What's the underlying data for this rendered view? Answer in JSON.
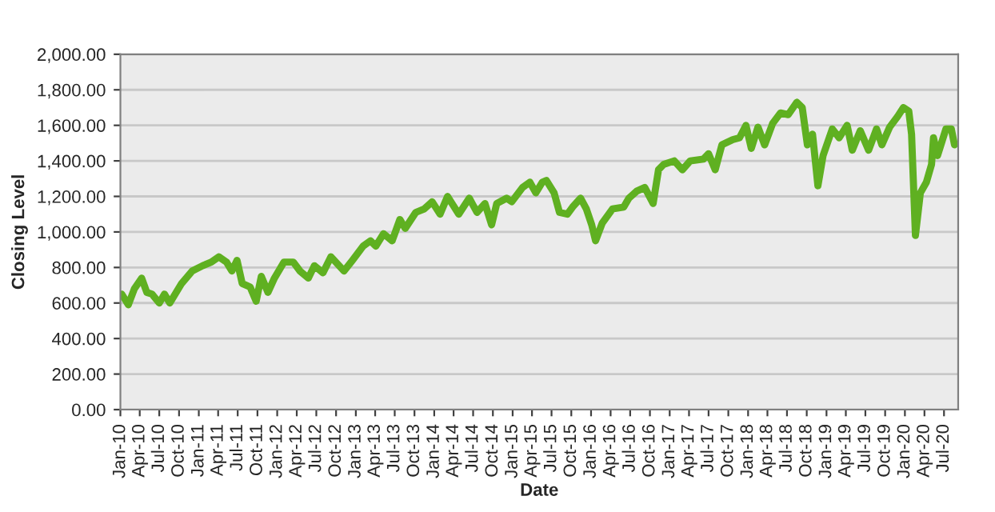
{
  "chart_data": {
    "type": "line",
    "xlabel": "Date",
    "ylabel": "Closing Level",
    "x": [
      "2010-01-07",
      "2010-02-07",
      "2010-03-07",
      "2010-04-10",
      "2010-05-04",
      "2010-05-28",
      "2010-07-01",
      "2010-07-25",
      "2010-08-19",
      "2010-10-13",
      "2010-12-01",
      "2011-01-19",
      "2011-02-28",
      "2011-04-04",
      "2011-05-10",
      "2011-06-04",
      "2011-06-28",
      "2011-07-22",
      "2011-08-28",
      "2011-09-25",
      "2011-10-19",
      "2011-11-19",
      "2011-12-19",
      "2012-02-01",
      "2012-03-16",
      "2012-04-16",
      "2012-05-25",
      "2012-06-22",
      "2012-08-01",
      "2012-09-07",
      "2012-11-07",
      "2012-12-16",
      "2013-02-04",
      "2013-03-10",
      "2013-04-04",
      "2013-05-10",
      "2013-06-19",
      "2013-07-25",
      "2013-08-19",
      "2013-10-07",
      "2013-11-16",
      "2013-12-22",
      "2014-01-28",
      "2014-03-04",
      "2014-04-25",
      "2014-06-13",
      "2014-07-19",
      "2014-08-25",
      "2014-09-25",
      "2014-10-19",
      "2014-12-04",
      "2014-12-28",
      "2015-02-16",
      "2015-03-22",
      "2015-04-19",
      "2015-05-19",
      "2015-06-07",
      "2015-07-13",
      "2015-08-07",
      "2015-09-13",
      "2015-10-07",
      "2015-11-13",
      "2015-12-10",
      "2016-01-04",
      "2016-01-22",
      "2016-02-22",
      "2016-04-10",
      "2016-06-01",
      "2016-06-25",
      "2016-08-01",
      "2016-09-07",
      "2016-10-16",
      "2016-11-10",
      "2016-12-04",
      "2017-01-22",
      "2017-03-01",
      "2017-04-07",
      "2017-06-07",
      "2017-07-01",
      "2017-08-01",
      "2017-09-01",
      "2017-10-22",
      "2017-11-22",
      "2017-12-22",
      "2018-01-16",
      "2018-02-16",
      "2018-03-19",
      "2018-04-25",
      "2018-06-01",
      "2018-07-07",
      "2018-08-16",
      "2018-09-10",
      "2018-10-04",
      "2018-10-28",
      "2018-11-22",
      "2018-12-16",
      "2019-01-28",
      "2019-03-01",
      "2019-04-07",
      "2019-05-01",
      "2019-06-07",
      "2019-07-16",
      "2019-08-22",
      "2019-09-16",
      "2019-10-22",
      "2019-11-28",
      "2019-12-25",
      "2020-01-19",
      "2020-02-01",
      "2020-02-19",
      "2020-03-13",
      "2020-04-10",
      "2020-05-04",
      "2020-05-13",
      "2020-06-01",
      "2020-07-10",
      "2020-08-04",
      "2020-08-19"
    ],
    "series": [
      {
        "color": "#5fb021",
        "values": [
          650,
          590,
          680,
          740,
          660,
          650,
          600,
          650,
          600,
          710,
          780,
          810,
          830,
          860,
          830,
          780,
          840,
          710,
          690,
          610,
          750,
          660,
          740,
          830,
          830,
          780,
          740,
          810,
          770,
          860,
          780,
          840,
          920,
          950,
          920,
          990,
          950,
          1070,
          1020,
          1110,
          1130,
          1170,
          1100,
          1200,
          1100,
          1190,
          1110,
          1160,
          1040,
          1160,
          1190,
          1170,
          1250,
          1280,
          1220,
          1280,
          1290,
          1220,
          1110,
          1100,
          1140,
          1190,
          1130,
          1040,
          950,
          1050,
          1130,
          1140,
          1190,
          1230,
          1250,
          1160,
          1350,
          1380,
          1400,
          1350,
          1400,
          1410,
          1440,
          1350,
          1490,
          1520,
          1530,
          1600,
          1470,
          1590,
          1490,
          1610,
          1670,
          1660,
          1730,
          1700,
          1490,
          1550,
          1260,
          1430,
          1580,
          1530,
          1600,
          1460,
          1570,
          1460,
          1580,
          1490,
          1590,
          1650,
          1700,
          1680,
          1550,
          980,
          1220,
          1280,
          1380,
          1530,
          1430,
          1580,
          1580,
          1490
        ]
      }
    ],
    "xlim": [
      "2010-01-01",
      "2020-09-05"
    ],
    "xticks": [
      {
        "value": "2010-01-01",
        "label": "Jan-10"
      },
      {
        "value": "2010-04-01",
        "label": "Apr-10"
      },
      {
        "value": "2010-07-01",
        "label": "Jul-10"
      },
      {
        "value": "2010-10-01",
        "label": "Oct-10"
      },
      {
        "value": "2011-01-01",
        "label": "Jan-11"
      },
      {
        "value": "2011-04-01",
        "label": "Apr-11"
      },
      {
        "value": "2011-07-01",
        "label": "Jul-11"
      },
      {
        "value": "2011-10-01",
        "label": "Oct-11"
      },
      {
        "value": "2012-01-01",
        "label": "Jan-12"
      },
      {
        "value": "2012-04-01",
        "label": "Apr-12"
      },
      {
        "value": "2012-07-01",
        "label": "Jul-12"
      },
      {
        "value": "2012-10-01",
        "label": "Oct-12"
      },
      {
        "value": "2013-01-01",
        "label": "Jan-13"
      },
      {
        "value": "2013-04-01",
        "label": "Apr-13"
      },
      {
        "value": "2013-07-01",
        "label": "Jul-13"
      },
      {
        "value": "2013-10-01",
        "label": "Oct-13"
      },
      {
        "value": "2014-01-01",
        "label": "Jan-14"
      },
      {
        "value": "2014-04-01",
        "label": "Apr-14"
      },
      {
        "value": "2014-07-01",
        "label": "Jul-14"
      },
      {
        "value": "2014-10-01",
        "label": "Oct-14"
      },
      {
        "value": "2015-01-01",
        "label": "Jan-15"
      },
      {
        "value": "2015-04-01",
        "label": "Apr-15"
      },
      {
        "value": "2015-07-01",
        "label": "Jul-15"
      },
      {
        "value": "2015-10-01",
        "label": "Oct-15"
      },
      {
        "value": "2016-01-01",
        "label": "Jan-16"
      },
      {
        "value": "2016-04-01",
        "label": "Apr-16"
      },
      {
        "value": "2016-07-01",
        "label": "Jul-16"
      },
      {
        "value": "2016-10-01",
        "label": "Oct-16"
      },
      {
        "value": "2017-01-01",
        "label": "Jan-17"
      },
      {
        "value": "2017-04-01",
        "label": "Apr-17"
      },
      {
        "value": "2017-07-01",
        "label": "Jul-17"
      },
      {
        "value": "2017-10-01",
        "label": "Oct-17"
      },
      {
        "value": "2018-01-01",
        "label": "Jan-18"
      },
      {
        "value": "2018-04-01",
        "label": "Apr-18"
      },
      {
        "value": "2018-07-01",
        "label": "Jul-18"
      },
      {
        "value": "2018-10-01",
        "label": "Oct-18"
      },
      {
        "value": "2019-01-01",
        "label": "Jan-19"
      },
      {
        "value": "2019-04-01",
        "label": "Apr-19"
      },
      {
        "value": "2019-07-01",
        "label": "Jul-19"
      },
      {
        "value": "2019-10-01",
        "label": "Oct-19"
      },
      {
        "value": "2020-01-01",
        "label": "Jan-20"
      },
      {
        "value": "2020-04-01",
        "label": "Apr-20"
      },
      {
        "value": "2020-07-01",
        "label": "Jul-20"
      }
    ],
    "ylim": [
      0,
      2000
    ],
    "yticks": [
      {
        "value": 0,
        "label": "0.00"
      },
      {
        "value": 200,
        "label": "200.00"
      },
      {
        "value": 400,
        "label": "400.00"
      },
      {
        "value": 600,
        "label": "600.00"
      },
      {
        "value": 800,
        "label": "800.00"
      },
      {
        "value": 1000,
        "label": "1,000.00"
      },
      {
        "value": 1200,
        "label": "1,200.00"
      },
      {
        "value": 1400,
        "label": "1,400.00"
      },
      {
        "value": 1600,
        "label": "1,600.00"
      },
      {
        "value": 1800,
        "label": "1,800.00"
      },
      {
        "value": 2000,
        "label": "2,000.00"
      }
    ],
    "grid": "y",
    "line_style": "solid"
  }
}
